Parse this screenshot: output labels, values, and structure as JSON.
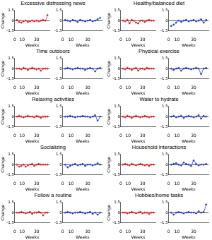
{
  "chart_data": [
    {
      "type": "line",
      "title": "Excessive distressing news",
      "x_label": "Weeks",
      "y_label": "Change",
      "x": [
        3,
        6,
        9,
        12,
        15,
        18,
        21,
        24,
        27,
        30,
        33,
        36,
        39,
        42,
        45
      ],
      "xlim": [
        0,
        48
      ],
      "xticks": [
        0,
        10,
        30
      ],
      "ylim": [
        -1.5,
        1.5
      ],
      "yticks": [
        -1.5,
        0,
        1.5
      ],
      "marker": "circle",
      "series": [
        {
          "color": "#e8202a",
          "values": [
            0.1,
            -0.2,
            -0.3,
            -0.1,
            0.0,
            -0.2,
            -0.1,
            0.0,
            -0.1,
            0.0,
            -0.1,
            0.0,
            0.1,
            0.0,
            0.8
          ]
        },
        {
          "color": "#2b3fd6",
          "values": [
            0.1,
            0.0,
            -0.1,
            0.1,
            0.0,
            -0.2,
            0.1,
            0.0,
            -0.1,
            0.0,
            0.1,
            -0.1,
            0.0,
            0.2,
            0.4
          ]
        }
      ]
    },
    {
      "type": "line",
      "title": "Healthy/balanced diet",
      "x_label": "Weeks",
      "y_label": "Change",
      "x": [
        3,
        6,
        9,
        12,
        15,
        18,
        21,
        24,
        27,
        30,
        33,
        36,
        39,
        42,
        45
      ],
      "xlim": [
        0,
        48
      ],
      "xticks": [
        0,
        10,
        30
      ],
      "ylim": [
        -1.5,
        1.5
      ],
      "yticks": [
        -1.5,
        0,
        1.5
      ],
      "marker": "circle",
      "series": [
        {
          "color": "#e8202a",
          "values": [
            0.0,
            -0.1,
            0.1,
            -0.4,
            0.1,
            0.0,
            -0.3,
            -0.4,
            0.0,
            0.0,
            -0.2,
            0.0,
            0.1,
            0.0,
            0.0
          ]
        },
        {
          "color": "#2b3fd6",
          "values": [
            -0.8,
            -0.6,
            -0.3,
            0.0,
            -0.2,
            0.0,
            0.1,
            -0.1,
            0.0,
            0.1,
            -0.1,
            0.0,
            0.2,
            -0.3,
            0.1
          ]
        }
      ]
    },
    {
      "type": "line",
      "title": "Time outdoors",
      "x_label": "Weeks",
      "y_label": "Change",
      "x": [
        3,
        6,
        9,
        12,
        15,
        18,
        21,
        24,
        27,
        30,
        33,
        36,
        39,
        42,
        45
      ],
      "xlim": [
        0,
        48
      ],
      "xticks": [
        0,
        10,
        30
      ],
      "ylim": [
        -1.5,
        1.5
      ],
      "yticks": [
        -1.5,
        0,
        1.5
      ],
      "marker": "circle",
      "series": [
        {
          "color": "#e8202a",
          "values": [
            0.0,
            0.0,
            -0.1,
            0.1,
            0.0,
            -0.2,
            0.0,
            0.1,
            0.0,
            -0.1,
            0.0,
            -0.3,
            0.0,
            0.0,
            0.0
          ]
        },
        {
          "color": "#2b3fd6",
          "values": [
            0.0,
            0.1,
            0.0,
            -0.1,
            0.0,
            0.1,
            0.0,
            0.0,
            -0.2,
            0.0,
            0.1,
            0.0,
            -0.4,
            0.0,
            0.1
          ]
        }
      ]
    },
    {
      "type": "line",
      "title": "Physical exercise",
      "x_label": "Weeks",
      "y_label": "Change",
      "x": [
        3,
        6,
        9,
        12,
        15,
        18,
        21,
        24,
        27,
        30,
        33,
        36,
        39,
        42,
        45
      ],
      "xlim": [
        0,
        48
      ],
      "xticks": [
        0,
        10,
        30
      ],
      "ylim": [
        -1.5,
        1.5
      ],
      "yticks": [
        -1.5,
        0,
        1.5
      ],
      "marker": "circle",
      "series": [
        {
          "color": "#e8202a",
          "values": [
            0.0,
            -0.1,
            0.1,
            0.0,
            -0.2,
            0.0,
            0.1,
            -0.3,
            0.0,
            0.0,
            -0.1,
            0.1,
            0.0,
            0.0,
            0.0
          ]
        },
        {
          "color": "#2b3fd6",
          "values": [
            0.0,
            -0.2,
            0.0,
            0.1,
            -0.3,
            0.0,
            0.1,
            0.0,
            -0.1,
            0.0,
            0.1,
            0.0,
            -0.8,
            0.0,
            0.1
          ]
        }
      ]
    },
    {
      "type": "line",
      "title": "Relaxing activities",
      "x_label": "Weeks",
      "y_label": "Change",
      "x": [
        3,
        6,
        9,
        12,
        15,
        18,
        21,
        24,
        27,
        30,
        33,
        36,
        39,
        42,
        45
      ],
      "xlim": [
        0,
        48
      ],
      "xticks": [
        0,
        10,
        30
      ],
      "ylim": [
        -1.5,
        1.5
      ],
      "yticks": [
        -1.5,
        0,
        1.5
      ],
      "marker": "circle",
      "series": [
        {
          "color": "#e8202a",
          "values": [
            0.0,
            0.1,
            0.0,
            -0.1,
            0.0,
            0.1,
            0.0,
            0.0,
            -0.1,
            0.1,
            0.0,
            -0.2,
            0.0,
            0.0,
            0.0
          ]
        },
        {
          "color": "#2b3fd6",
          "values": [
            0.0,
            0.0,
            0.1,
            0.0,
            -0.1,
            0.0,
            0.0,
            0.1,
            0.0,
            0.0,
            -0.1,
            0.0,
            0.2,
            -0.6,
            0.0
          ]
        }
      ]
    },
    {
      "type": "line",
      "title": "Water to hydrate",
      "x_label": "Weeks",
      "y_label": "Change",
      "x": [
        3,
        6,
        9,
        12,
        15,
        18,
        21,
        24,
        27,
        30,
        33,
        36,
        39,
        42,
        45
      ],
      "xlim": [
        0,
        48
      ],
      "xticks": [
        0,
        10,
        30
      ],
      "ylim": [
        -1.5,
        1.5
      ],
      "yticks": [
        -1.5,
        0,
        1.5
      ],
      "marker": "circle",
      "series": [
        {
          "color": "#e8202a",
          "values": [
            0.0,
            -0.1,
            0.1,
            0.0,
            -0.2,
            0.0,
            0.1,
            0.0,
            -0.1,
            0.0,
            0.1,
            0.0,
            -0.1,
            0.0,
            0.0
          ]
        },
        {
          "color": "#2b3fd6",
          "values": [
            0.0,
            0.1,
            -0.1,
            0.0,
            0.1,
            -0.2,
            0.0,
            0.1,
            0.0,
            -0.1,
            0.0,
            0.2,
            -0.3,
            0.1,
            0.0
          ]
        }
      ]
    },
    {
      "type": "line",
      "title": "Socializing",
      "x_label": "Weeks",
      "y_label": "Change",
      "x": [
        3,
        6,
        9,
        12,
        15,
        18,
        21,
        24,
        27,
        30,
        33,
        36,
        39,
        42,
        45
      ],
      "xlim": [
        0,
        48
      ],
      "xticks": [
        0,
        10,
        30
      ],
      "ylim": [
        -1.5,
        1.5
      ],
      "yticks": [
        -1.5,
        0,
        1.5
      ],
      "marker": "circle",
      "series": [
        {
          "color": "#e8202a",
          "values": [
            0.0,
            -0.3,
            -0.2,
            0.0,
            -0.3,
            -0.1,
            0.0,
            0.1,
            -0.2,
            0.0,
            0.1,
            0.0,
            0.0,
            0.0,
            0.0
          ]
        },
        {
          "color": "#2b3fd6",
          "values": [
            0.0,
            -0.4,
            -0.2,
            0.0,
            0.1,
            -0.1,
            0.0,
            0.1,
            -0.2,
            0.0,
            0.0,
            -0.1,
            0.0,
            0.2,
            0.0
          ]
        }
      ]
    },
    {
      "type": "line",
      "title": "Household interactions",
      "x_label": "Weeks",
      "y_label": "Change",
      "x": [
        3,
        6,
        9,
        12,
        15,
        18,
        21,
        24,
        27,
        30,
        33,
        36,
        39,
        42,
        45
      ],
      "xlim": [
        0,
        48
      ],
      "xticks": [
        0,
        10,
        30
      ],
      "ylim": [
        -1.5,
        1.5
      ],
      "yticks": [
        -1.5,
        0,
        1.5
      ],
      "marker": "circle",
      "series": [
        {
          "color": "#e8202a",
          "values": [
            0.0,
            0.1,
            0.0,
            -0.1,
            0.1,
            0.0,
            -0.1,
            0.0,
            0.1,
            0.0,
            -0.1,
            0.0,
            -0.2,
            0.0,
            0.0
          ]
        },
        {
          "color": "#2b3fd6",
          "values": [
            0.0,
            0.1,
            0.2,
            0.0,
            -0.1,
            0.3,
            0.1,
            0.0,
            -0.2,
            0.6,
            0.1,
            -0.1,
            0.0,
            0.0,
            0.1
          ]
        }
      ]
    },
    {
      "type": "line",
      "title": "Follow a routine",
      "x_label": "Weeks",
      "y_label": "Change",
      "x": [
        3,
        6,
        9,
        12,
        15,
        18,
        21,
        24,
        27,
        30,
        33,
        36,
        39,
        42,
        45
      ],
      "xlim": [
        0,
        48
      ],
      "xticks": [
        0,
        10,
        30
      ],
      "ylim": [
        -1.5,
        1.5
      ],
      "yticks": [
        -1.5,
        0,
        1.5
      ],
      "marker": "circle",
      "series": [
        {
          "color": "#e8202a",
          "values": [
            0.0,
            0.0,
            0.1,
            0.0,
            -0.1,
            0.0,
            0.1,
            -0.2,
            0.0,
            0.0,
            0.1,
            0.0,
            -0.4,
            0.0,
            0.0
          ]
        },
        {
          "color": "#2b3fd6",
          "values": [
            0.0,
            0.1,
            0.0,
            -0.1,
            0.0,
            0.0,
            0.1,
            0.0,
            -0.1,
            0.0,
            0.1,
            -0.2,
            0.0,
            -0.3,
            0.0
          ]
        }
      ]
    },
    {
      "type": "line",
      "title": "Hobbies/home tasks",
      "x_label": "Weeks",
      "y_label": "Change",
      "x": [
        3,
        6,
        9,
        12,
        15,
        18,
        21,
        24,
        27,
        30,
        33,
        36,
        39,
        42,
        45
      ],
      "xlim": [
        0,
        48
      ],
      "xticks": [
        0,
        10,
        30
      ],
      "ylim": [
        -1.5,
        1.5
      ],
      "yticks": [
        -1.5,
        0,
        1.5
      ],
      "marker": "circle",
      "series": [
        {
          "color": "#e8202a",
          "values": [
            0.0,
            0.0,
            -0.1,
            0.0,
            0.1,
            0.0,
            -0.1,
            0.0,
            0.1,
            -0.1,
            0.0,
            0.0,
            -0.2,
            0.0,
            0.0
          ]
        },
        {
          "color": "#2b3fd6",
          "values": [
            0.0,
            -0.3,
            0.0,
            0.1,
            0.0,
            -0.1,
            0.0,
            0.1,
            0.0,
            0.0,
            -0.1,
            0.2,
            0.0,
            0.1,
            1.2
          ]
        }
      ]
    }
  ]
}
